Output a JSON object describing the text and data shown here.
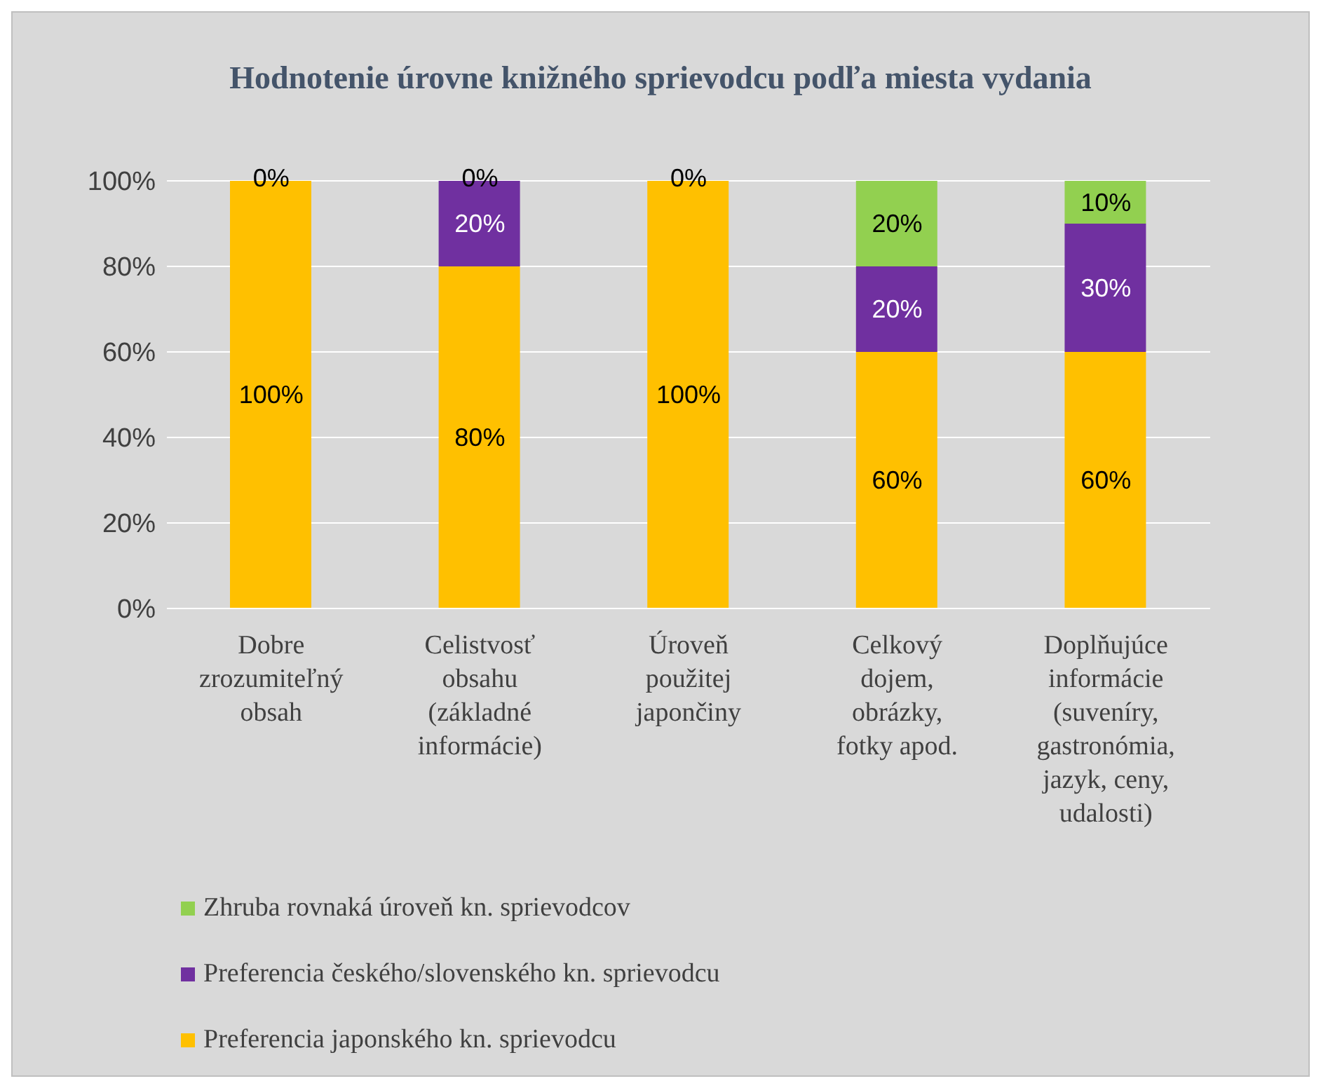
{
  "chart_data": {
    "type": "bar",
    "title": "Hodnotenie úrovne knižného sprievodcu podľa miesta vydania",
    "categories": [
      "Dobre zrozumiteľný obsah",
      "Celistvosť obsahu (základné informácie)",
      "Úroveň použitej japončiny",
      "Celkový dojem, obrázky, fotky apod.",
      "Doplňujúce informácie (suveníry, gastronómia, jazyk, ceny, udalosti)"
    ],
    "stacked": true,
    "series": [
      {
        "name": "Preferencia japonského kn. sprievodcu",
        "color": "#ffc000",
        "values": [
          100,
          80,
          100,
          60,
          60
        ],
        "value_labels": [
          "100%",
          "80%",
          "100%",
          "60%",
          "60%"
        ]
      },
      {
        "name": "Preferencia českého/slovenského kn. sprievodcu",
        "color": "#7030a0",
        "values": [
          0,
          20,
          0,
          20,
          30
        ],
        "value_labels": [
          null,
          "20%",
          null,
          "20%",
          "30%"
        ]
      },
      {
        "name": "Zhruba rovnaká úroveň kn. sprievodcov",
        "color": "#92d050",
        "values": [
          0,
          0,
          0,
          20,
          10
        ],
        "value_labels": [
          "0%",
          "0%",
          "0%",
          "20%",
          "10%"
        ]
      }
    ],
    "ylim": [
      0,
      100
    ],
    "yticks": [
      {
        "value": 0,
        "label": "0%"
      },
      {
        "value": 20,
        "label": "20%"
      },
      {
        "value": 40,
        "label": "40%"
      },
      {
        "value": 60,
        "label": "60%"
      },
      {
        "value": 80,
        "label": "80%"
      },
      {
        "value": 100,
        "label": "100%"
      }
    ],
    "grid": "y",
    "legend": "bottom"
  }
}
